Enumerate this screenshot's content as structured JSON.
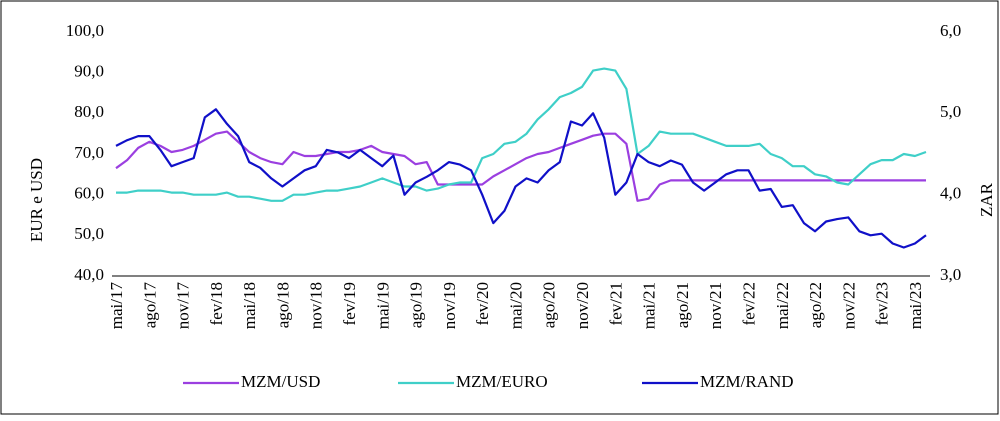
{
  "chart_data": {
    "type": "line",
    "y_label": "EUR e USD",
    "y2_label": "ZAR",
    "categories": [
      "mai/17",
      null,
      null,
      "ago/17",
      null,
      null,
      "nov/17",
      null,
      null,
      "fev/18",
      null,
      null,
      "mai/18",
      null,
      null,
      "ago/18",
      null,
      null,
      "nov/18",
      null,
      null,
      "fev/19",
      null,
      null,
      "mai/19",
      null,
      null,
      "ago/19",
      null,
      null,
      "nov/19",
      null,
      null,
      "fev/20",
      null,
      null,
      "mai/20",
      null,
      null,
      "ago/20",
      null,
      null,
      "nov/20",
      null,
      null,
      "fev/21",
      null,
      null,
      "mai/21",
      null,
      null,
      "ago/21",
      null,
      null,
      "nov/21",
      null,
      null,
      "fev/22",
      null,
      null,
      "mai/22",
      null,
      null,
      "ago/22",
      null,
      null,
      "nov/22",
      null,
      null,
      "fev/23",
      null,
      null,
      "mai/23",
      null
    ],
    "series": [
      {
        "name": "MZM/USD",
        "color": "#9b3fe0",
        "values": [
          66.5,
          68.5,
          71.5,
          73,
          72,
          70.5,
          71,
          72,
          73.5,
          75,
          75.5,
          73,
          70.5,
          69,
          68,
          67.5,
          70.5,
          69.5,
          69.5,
          70,
          70.5,
          70.5,
          71,
          72,
          70.5,
          70,
          69.5,
          67.5,
          68,
          62.5,
          62.5,
          62.5,
          62.5,
          62.5,
          64.5,
          66,
          67.5,
          69,
          70,
          70.5,
          71.5,
          72.5,
          73.5,
          74.5,
          75,
          75,
          72.5,
          58.5,
          59,
          62.5,
          63.5,
          63.5,
          63.5,
          63.5,
          63.5,
          63.5,
          63.5,
          63.5,
          63.5,
          63.5,
          63.5,
          63.5,
          63.5,
          63.5,
          63.5,
          63.5,
          63.5,
          63.5,
          63.5,
          63.5,
          63.5,
          63.5,
          63.5,
          63.5
        ]
      },
      {
        "name": "MZM/EURO",
        "color": "#3fcfc8",
        "values": [
          60.5,
          60.5,
          61,
          61,
          61,
          60.5,
          60.5,
          60,
          60,
          60,
          60.5,
          59.5,
          59.5,
          59,
          58.5,
          58.5,
          60,
          60,
          60.5,
          61,
          61,
          61.5,
          62,
          63,
          64,
          63,
          62,
          62,
          61,
          61.5,
          62.5,
          63,
          63,
          69,
          70,
          72.5,
          73,
          75,
          78.5,
          81,
          84,
          85,
          86.5,
          90.5,
          91,
          90.5,
          86,
          70,
          72,
          75.5,
          75,
          75,
          75,
          74,
          73,
          72,
          72,
          72,
          72.5,
          70,
          69,
          67,
          67,
          65,
          64.5,
          63,
          62.5,
          65,
          67.5,
          68.5,
          68.5,
          70,
          69.5,
          70.5
        ]
      },
      {
        "name": "MZM/RAND",
        "color": "#1010c8",
        "axis": "y2",
        "values": [
          4.6,
          4.67,
          4.72,
          4.72,
          4.55,
          4.35,
          4.4,
          4.45,
          4.95,
          5.05,
          4.87,
          4.72,
          4.4,
          4.33,
          4.2,
          4.1,
          4.2,
          4.3,
          4.35,
          4.55,
          4.52,
          4.45,
          4.55,
          4.45,
          4.35,
          4.48,
          4.0,
          4.15,
          4.22,
          4.3,
          4.4,
          4.37,
          4.3,
          4.0,
          3.65,
          3.8,
          4.1,
          4.2,
          4.15,
          4.3,
          4.4,
          4.9,
          4.85,
          5.0,
          4.7,
          4.0,
          4.15,
          4.5,
          4.4,
          4.35,
          4.42,
          4.37,
          4.15,
          4.05,
          4.15,
          4.25,
          4.3,
          4.3,
          4.05,
          4.07,
          3.85,
          3.87,
          3.65,
          3.55,
          3.67,
          3.7,
          3.72,
          3.55,
          3.5,
          3.52,
          3.4,
          3.35,
          3.4,
          3.5
        ]
      }
    ],
    "ylim": [
      40,
      100
    ],
    "yticks": [
      {
        "value": 40,
        "label": "40,0"
      },
      {
        "value": 50,
        "label": "50,0"
      },
      {
        "value": 60,
        "label": "60,0"
      },
      {
        "value": 70,
        "label": "70,0"
      },
      {
        "value": 80,
        "label": "80,0"
      },
      {
        "value": 90,
        "label": "90,0"
      },
      {
        "value": 100,
        "label": "100,0"
      }
    ],
    "y2lim": [
      3,
      6
    ],
    "y2ticks": [
      {
        "value": 3,
        "label": "3,0"
      },
      {
        "value": 4,
        "label": "4,0"
      },
      {
        "value": 5,
        "label": "5,0"
      },
      {
        "value": 6,
        "label": "6,0"
      }
    ],
    "grid": false,
    "legend": "bottom"
  }
}
